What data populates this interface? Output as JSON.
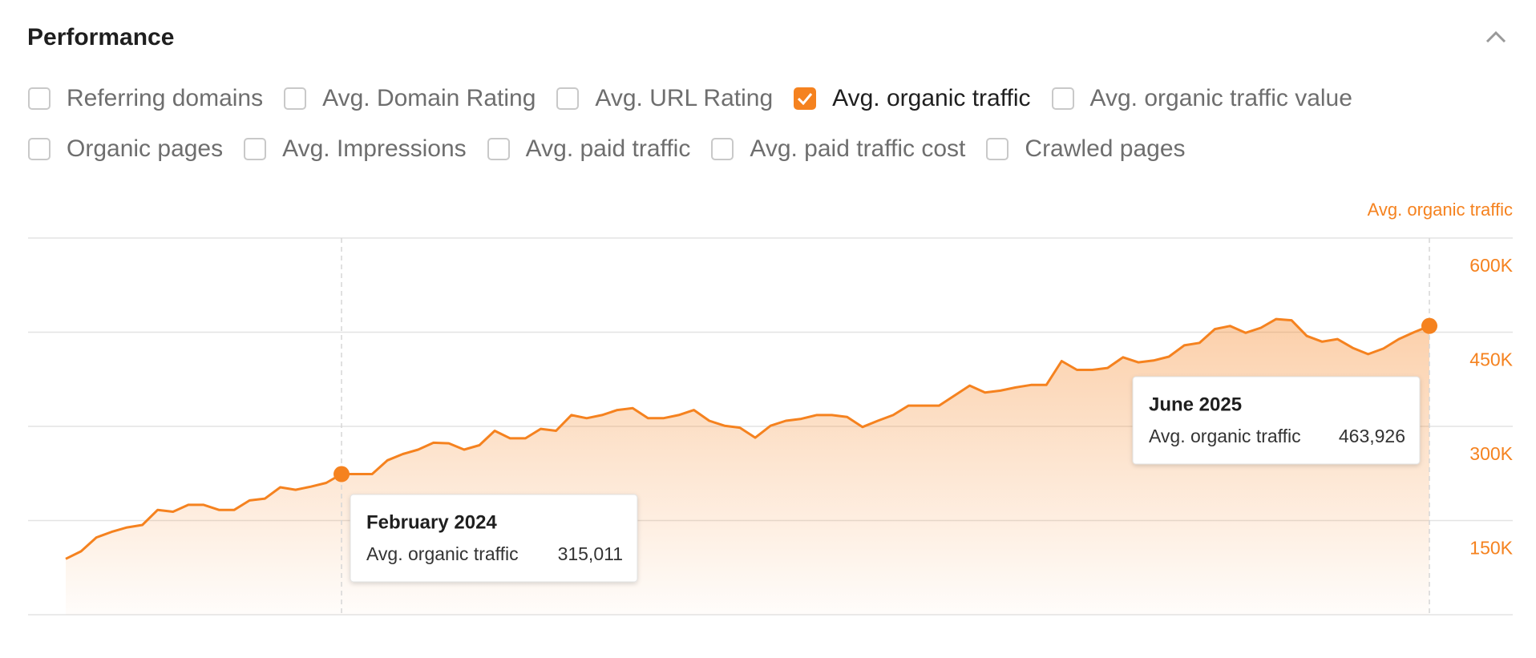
{
  "header": {
    "title": "Performance"
  },
  "filters": [
    [
      {
        "label": "Referring domains",
        "checked": false
      },
      {
        "label": "Avg. Domain Rating",
        "checked": false
      },
      {
        "label": "Avg. URL Rating",
        "checked": false
      },
      {
        "label": "Avg. organic traffic",
        "checked": true
      },
      {
        "label": "Avg. organic traffic value",
        "checked": false
      }
    ],
    [
      {
        "label": "Organic pages",
        "checked": false
      },
      {
        "label": "Avg. Impressions",
        "checked": false
      },
      {
        "label": "Avg. paid traffic",
        "checked": false
      },
      {
        "label": "Avg. paid traffic cost",
        "checked": false
      },
      {
        "label": "Crawled pages",
        "checked": false
      }
    ]
  ],
  "chart_data": {
    "type": "area",
    "y_axis_label": "Avg. organic traffic",
    "color": "#f5821f",
    "ylim": [
      0,
      600000
    ],
    "yticks": [
      {
        "value": 150000,
        "label": "150K"
      },
      {
        "value": 300000,
        "label": "300K"
      },
      {
        "value": 450000,
        "label": "450K"
      },
      {
        "value": 600000,
        "label": "600K"
      }
    ],
    "grid": true,
    "series": [
      {
        "name": "Avg. organic traffic",
        "color": "#f5821f",
        "values": [
          89000,
          101000,
          123000,
          132000,
          139000,
          143000,
          167000,
          164000,
          175000,
          175000,
          167000,
          167000,
          182000,
          185000,
          203000,
          199000,
          204000,
          210000,
          224000,
          224000,
          224000,
          246000,
          256000,
          263000,
          274000,
          273000,
          263000,
          270000,
          293000,
          281000,
          281000,
          296000,
          293000,
          318000,
          313000,
          318000,
          326000,
          329000,
          313000,
          313000,
          318000,
          326000,
          309000,
          301000,
          298000,
          282000,
          301000,
          309000,
          312000,
          318000,
          318000,
          315000,
          299000,
          309000,
          318000,
          333000,
          333000,
          333000,
          349000,
          365000,
          354000,
          357000,
          362000,
          366000,
          366000,
          404000,
          390000,
          390000,
          393000,
          410000,
          402000,
          405000,
          411000,
          429000,
          433000,
          455000,
          460000,
          449000,
          457000,
          471000,
          469000,
          444000,
          435000,
          439000,
          425000,
          415000,
          424000,
          439000,
          450000,
          460000
        ]
      }
    ],
    "tooltips": [
      {
        "title": "February 2024",
        "label": "Avg. organic traffic",
        "value": "315,011"
      },
      {
        "title": "June 2025",
        "label": "Avg. organic traffic",
        "value": "463,926"
      }
    ]
  }
}
